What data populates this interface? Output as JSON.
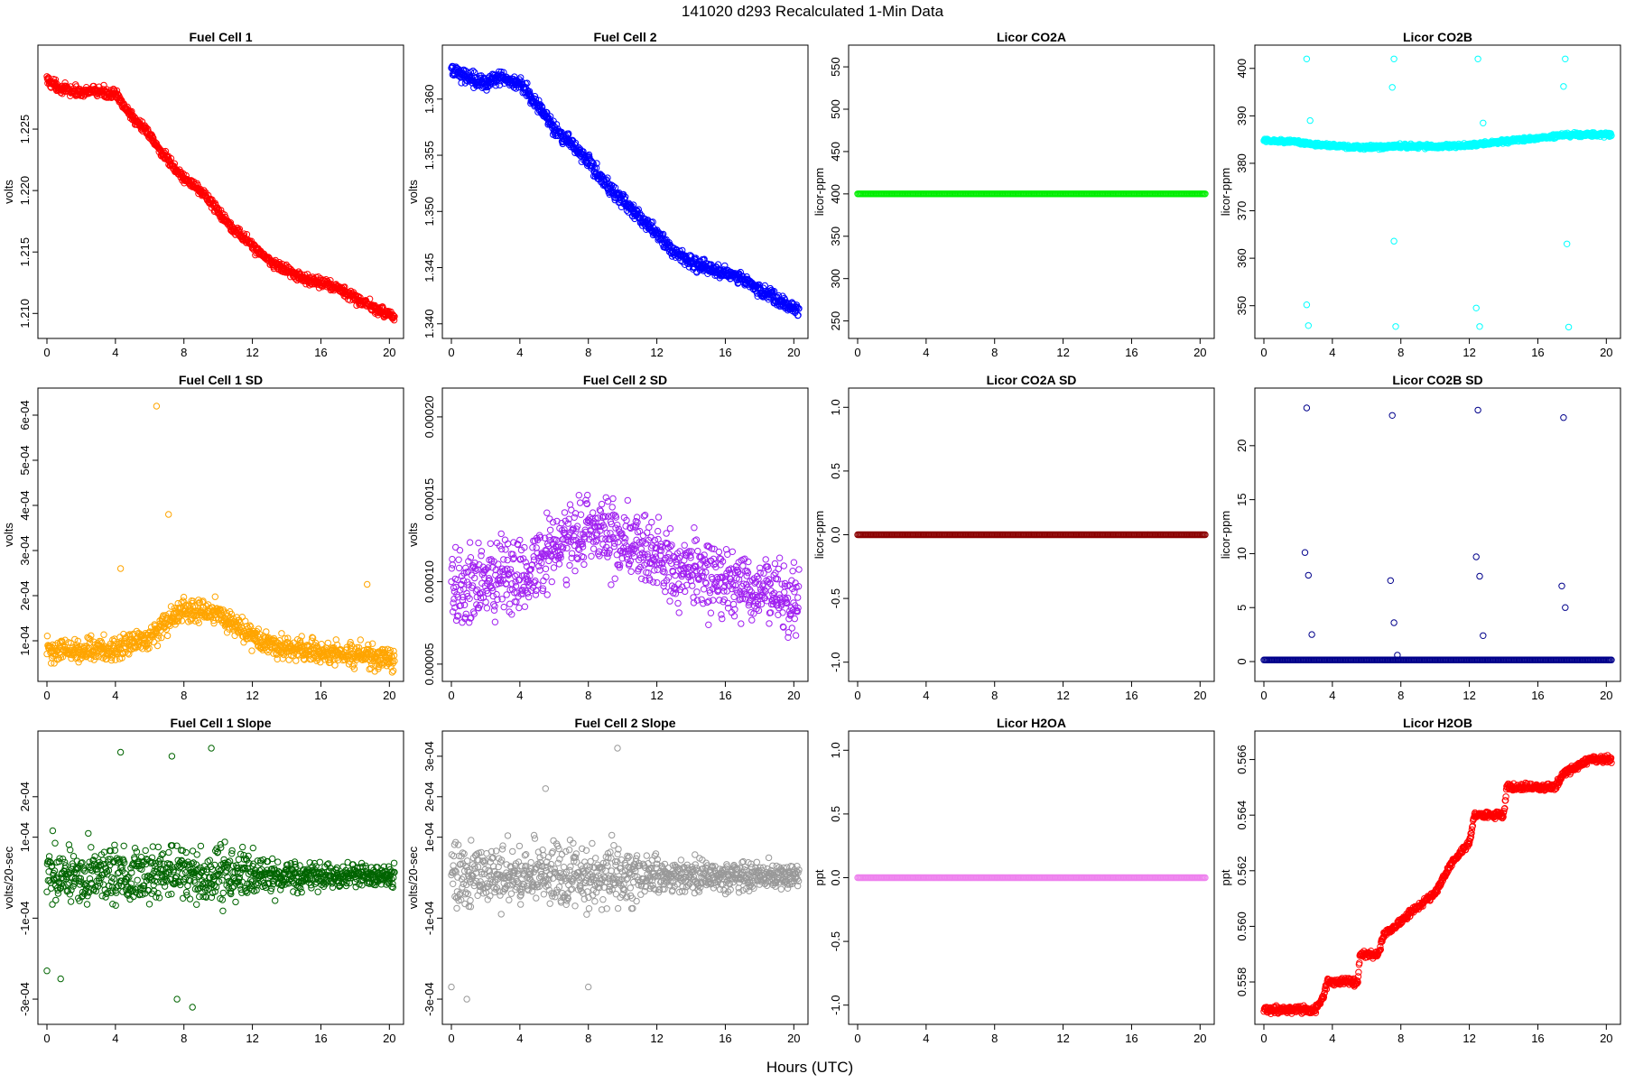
{
  "page_title": "141020   d293   Recalculated 1-Min Data",
  "x_axis_label": "Hours (UTC)",
  "chart_data": [
    {
      "type": "scatter",
      "title": "Fuel Cell 1",
      "ylabel": "volts",
      "color": "#ff0000",
      "xlim": [
        0,
        20.3
      ],
      "ylim": [
        1.2087,
        1.2311
      ],
      "xticks": [
        0,
        4,
        8,
        12,
        16,
        20
      ],
      "yticks": [
        1.21,
        1.215,
        1.22,
        1.225
      ],
      "ytick_labels": [
        "1.210",
        "1.215",
        "1.220",
        "1.225"
      ],
      "pattern": "trend",
      "points": [
        [
          0,
          1.229
        ],
        [
          1,
          1.2282
        ],
        [
          2,
          1.228
        ],
        [
          3,
          1.2281
        ],
        [
          4,
          1.2278
        ],
        [
          5,
          1.226
        ],
        [
          6,
          1.2245
        ],
        [
          7,
          1.2225
        ],
        [
          8,
          1.221
        ],
        [
          9,
          1.22
        ],
        [
          10,
          1.2183
        ],
        [
          11,
          1.2168
        ],
        [
          12,
          1.2155
        ],
        [
          13,
          1.2143
        ],
        [
          14,
          1.2135
        ],
        [
          15,
          1.2128
        ],
        [
          16,
          1.2125
        ],
        [
          17,
          1.212
        ],
        [
          18,
          1.2113
        ],
        [
          19,
          1.2105
        ],
        [
          20.3,
          1.2097
        ]
      ],
      "noise": 0.0004
    },
    {
      "type": "scatter",
      "title": "Fuel Cell 2",
      "ylabel": "volts",
      "color": "#0000ff",
      "xlim": [
        0,
        20.3
      ],
      "ylim": [
        1.3395,
        1.364
      ],
      "xticks": [
        0,
        4,
        8,
        12,
        16,
        20
      ],
      "yticks": [
        1.34,
        1.345,
        1.35,
        1.355,
        1.36
      ],
      "ytick_labels": [
        "1.340",
        "1.345",
        "1.350",
        "1.355",
        "1.360"
      ],
      "pattern": "trend",
      "points": [
        [
          0,
          1.3625
        ],
        [
          1,
          1.362
        ],
        [
          2,
          1.3615
        ],
        [
          3,
          1.3618
        ],
        [
          4,
          1.3615
        ],
        [
          5,
          1.3595
        ],
        [
          6,
          1.3573
        ],
        [
          7,
          1.356
        ],
        [
          8,
          1.3545
        ],
        [
          9,
          1.3525
        ],
        [
          10,
          1.351
        ],
        [
          11,
          1.3495
        ],
        [
          12,
          1.348
        ],
        [
          13,
          1.3465
        ],
        [
          14,
          1.3455
        ],
        [
          15,
          1.345
        ],
        [
          16,
          1.3445
        ],
        [
          17,
          1.344
        ],
        [
          18,
          1.343
        ],
        [
          19,
          1.3422
        ],
        [
          20.3,
          1.3412
        ]
      ],
      "noise": 0.0006
    },
    {
      "type": "scatter",
      "title": "Licor CO2A",
      "ylabel": "licor-ppm",
      "color": "#00ee00",
      "xlim": [
        0,
        20.3
      ],
      "ylim": [
        240,
        565
      ],
      "xticks": [
        0,
        4,
        8,
        12,
        16,
        20
      ],
      "yticks": [
        250,
        300,
        350,
        400,
        450,
        500,
        550
      ],
      "ytick_labels": [
        "250",
        "300",
        "350",
        "400",
        "450",
        "500",
        "550"
      ],
      "pattern": "constant",
      "value": 400
    },
    {
      "type": "scatter",
      "title": "Licor CO2B",
      "ylabel": "licor-ppm",
      "color": "#00ffff",
      "xlim": [
        0,
        20.3
      ],
      "ylim": [
        345,
        403
      ],
      "xticks": [
        0,
        4,
        8,
        12,
        16,
        20
      ],
      "yticks": [
        350,
        360,
        370,
        380,
        390,
        400
      ],
      "ytick_labels": [
        "350",
        "360",
        "370",
        "380",
        "390",
        "400"
      ],
      "pattern": "trend",
      "points": [
        [
          0,
          384.8
        ],
        [
          2,
          384.5
        ],
        [
          4,
          383.6
        ],
        [
          6,
          383.4
        ],
        [
          8,
          383.6
        ],
        [
          10,
          383.5
        ],
        [
          12,
          383.8
        ],
        [
          14,
          384.6
        ],
        [
          16,
          385.3
        ],
        [
          18,
          386.0
        ],
        [
          20.3,
          386.0
        ]
      ],
      "noise": 0.4,
      "outliers": [
        [
          2.5,
          402
        ],
        [
          2.7,
          389
        ],
        [
          2.5,
          350.2
        ],
        [
          2.6,
          345.8
        ],
        [
          7.6,
          402
        ],
        [
          7.5,
          396
        ],
        [
          7.6,
          363.6
        ],
        [
          7.7,
          345.6
        ],
        [
          12.5,
          402
        ],
        [
          12.4,
          349.5
        ],
        [
          12.6,
          345.6
        ],
        [
          12.8,
          388.5
        ],
        [
          17.6,
          402
        ],
        [
          17.5,
          396.2
        ],
        [
          17.7,
          363
        ],
        [
          17.8,
          345.5
        ]
      ]
    },
    {
      "type": "scatter",
      "title": "Fuel Cell 1 SD",
      "ylabel": "volts",
      "color": "#ffa500",
      "xlim": [
        0,
        20.3
      ],
      "ylim": [
        3e-05,
        0.00064
      ],
      "xticks": [
        0,
        4,
        8,
        12,
        16,
        20
      ],
      "yticks": [
        0.0001,
        0.0002,
        0.0003,
        0.0004,
        0.0005,
        0.0006
      ],
      "ytick_labels": [
        "1e-04",
        "2e-04",
        "3e-04",
        "4e-04",
        "5e-04",
        "6e-04"
      ],
      "pattern": "trend",
      "points": [
        [
          0,
          8e-05
        ],
        [
          4,
          8e-05
        ],
        [
          6,
          0.00011
        ],
        [
          8,
          0.00017
        ],
        [
          10,
          0.00016
        ],
        [
          12,
          0.00011
        ],
        [
          14,
          8e-05
        ],
        [
          16,
          7.5e-05
        ],
        [
          20.3,
          6e-05
        ]
      ],
      "noise": 2.5e-05,
      "outliers": [
        [
          4.3,
          0.00026
        ],
        [
          6.4,
          0.00062
        ],
        [
          7.1,
          0.00038
        ],
        [
          18.7,
          0.000225
        ]
      ]
    },
    {
      "type": "scatter",
      "title": "Fuel Cell 2 SD",
      "ylabel": "volts",
      "color": "#a020f0",
      "xlim": [
        0,
        20.3
      ],
      "ylim": [
        4.5e-05,
        0.000212
      ],
      "xticks": [
        0,
        4,
        8,
        12,
        16,
        20
      ],
      "yticks": [
        5e-05,
        0.0001,
        0.00015,
        0.0002
      ],
      "ytick_labels": [
        "0.00005",
        "0.00010",
        "0.00015",
        "0.00020"
      ],
      "pattern": "trend",
      "points": [
        [
          0,
          9.5e-05
        ],
        [
          4,
          0.000105
        ],
        [
          6,
          0.00012
        ],
        [
          8,
          0.00013
        ],
        [
          10,
          0.000125
        ],
        [
          12,
          0.000115
        ],
        [
          14,
          0.000105
        ],
        [
          16,
          0.0001
        ],
        [
          20.3,
          9e-05
        ]
      ],
      "noise": 2.2e-05
    },
    {
      "type": "scatter",
      "title": "Licor CO2A SD",
      "ylabel": "licor-ppm",
      "color": "#8b0000",
      "xlim": [
        0,
        20.3
      ],
      "ylim": [
        -1.08,
        1.08
      ],
      "xticks": [
        0,
        4,
        8,
        12,
        16,
        20
      ],
      "yticks": [
        -1.0,
        -0.5,
        0.0,
        0.5,
        1.0
      ],
      "ytick_labels": [
        "-1.0",
        "-0.5",
        "0.0",
        "0.5",
        "1.0"
      ],
      "pattern": "constant",
      "value": 0
    },
    {
      "type": "scatter",
      "title": "Licor CO2B SD",
      "ylabel": "licor-ppm",
      "color": "#00008b",
      "xlim": [
        0,
        20.3
      ],
      "ylim": [
        -1.0,
        24.5
      ],
      "xticks": [
        0,
        4,
        8,
        12,
        16,
        20
      ],
      "yticks": [
        0,
        5,
        10,
        15,
        20
      ],
      "ytick_labels": [
        "0",
        "5",
        "10",
        "15",
        "20"
      ],
      "pattern": "constant",
      "value": 0.15,
      "outliers": [
        [
          2.5,
          23.5
        ],
        [
          2.4,
          10.1
        ],
        [
          2.6,
          8.0
        ],
        [
          2.8,
          2.5
        ],
        [
          7.5,
          22.8
        ],
        [
          7.4,
          7.5
        ],
        [
          7.6,
          3.6
        ],
        [
          7.8,
          0.6
        ],
        [
          12.5,
          23.3
        ],
        [
          12.4,
          9.7
        ],
        [
          12.6,
          7.9
        ],
        [
          12.8,
          2.4
        ],
        [
          17.5,
          22.6
        ],
        [
          17.4,
          7.0
        ],
        [
          17.6,
          5.0
        ]
      ]
    },
    {
      "type": "scatter",
      "title": "Fuel Cell 1 Slope",
      "ylabel": "volts/20-sec",
      "color": "#006400",
      "xlim": [
        0,
        20.3
      ],
      "ylim": [
        -0.00034,
        0.00034
      ],
      "xticks": [
        0,
        4,
        8,
        12,
        16,
        20
      ],
      "yticks": [
        -0.0003,
        -0.0001,
        0.0001,
        0.0002
      ],
      "ytick_labels": [
        "-3e-04",
        "-1e-04",
        "1e-04",
        "2e-04"
      ],
      "pattern": "band",
      "center": 5e-06,
      "spread_points": [
        [
          0,
          7e-05
        ],
        [
          10,
          7e-05
        ],
        [
          13,
          4e-05
        ],
        [
          20.3,
          2.5e-05
        ]
      ],
      "outliers": [
        [
          4.3,
          0.00031
        ],
        [
          7.3,
          0.0003
        ],
        [
          9.6,
          0.00032
        ],
        [
          0.8,
          -0.00025
        ],
        [
          7.6,
          -0.0003
        ],
        [
          8.5,
          -0.00032
        ],
        [
          0,
          -0.00023
        ]
      ]
    },
    {
      "type": "scatter",
      "title": "Fuel Cell 2 Slope",
      "ylabel": "volts/20-sec",
      "color": "#999999",
      "xlim": [
        0,
        20.3
      ],
      "ylim": [
        -0.00034,
        0.00034
      ],
      "xticks": [
        0,
        4,
        8,
        12,
        16,
        20
      ],
      "yticks": [
        -0.0003,
        -0.0001,
        0.0001,
        0.0002,
        0.0003
      ],
      "ytick_labels": [
        "-3e-04",
        "-1e-04",
        "1e-04",
        "2e-04",
        "3e-04"
      ],
      "pattern": "band",
      "center": 5e-06,
      "spread_points": [
        [
          0,
          8e-05
        ],
        [
          10,
          7e-05
        ],
        [
          13,
          4e-05
        ],
        [
          20.3,
          3e-05
        ]
      ],
      "outliers": [
        [
          9.7,
          0.00032
        ],
        [
          5.5,
          0.00022
        ],
        [
          0.9,
          -0.0003
        ],
        [
          0,
          -0.00027
        ],
        [
          8,
          -0.00027
        ]
      ]
    },
    {
      "type": "scatter",
      "title": "Licor H2OA",
      "ylabel": "ppt",
      "color": "#ee82ee",
      "xlim": [
        0,
        20.3
      ],
      "ylim": [
        -1.08,
        1.08
      ],
      "xticks": [
        0,
        4,
        8,
        12,
        16,
        20
      ],
      "yticks": [
        -1.0,
        -0.5,
        0.0,
        0.5,
        1.0
      ],
      "ytick_labels": [
        "-1.0",
        "-0.5",
        "0.0",
        "0.5",
        "1.0"
      ],
      "pattern": "constant",
      "value": 0
    },
    {
      "type": "scatter",
      "title": "Licor H2OB",
      "ylabel": "ppt",
      "color": "#ff0000",
      "xlim": [
        0,
        20.3
      ],
      "ylim": [
        0.5568,
        0.5667
      ],
      "xticks": [
        0,
        4,
        8,
        12,
        16,
        20
      ],
      "yticks": [
        0.558,
        0.56,
        0.562,
        0.564,
        0.566
      ],
      "ytick_labels": [
        "0.558",
        "0.560",
        "0.562",
        "0.564",
        "0.566"
      ],
      "pattern": "trend",
      "points": [
        [
          0,
          0.557
        ],
        [
          3,
          0.557
        ],
        [
          3.5,
          0.5575
        ],
        [
          3.7,
          0.558
        ],
        [
          5.5,
          0.558
        ],
        [
          5.6,
          0.559
        ],
        [
          6.7,
          0.559
        ],
        [
          7,
          0.5597
        ],
        [
          8,
          0.5602
        ],
        [
          9,
          0.5607
        ],
        [
          10,
          0.5612
        ],
        [
          11,
          0.5623
        ],
        [
          12,
          0.563
        ],
        [
          12.3,
          0.564
        ],
        [
          14,
          0.564
        ],
        [
          14.2,
          0.565
        ],
        [
          17,
          0.565
        ],
        [
          17.5,
          0.5655
        ],
        [
          19,
          0.566
        ],
        [
          20.3,
          0.566
        ]
      ],
      "noise": 0.00012
    }
  ]
}
